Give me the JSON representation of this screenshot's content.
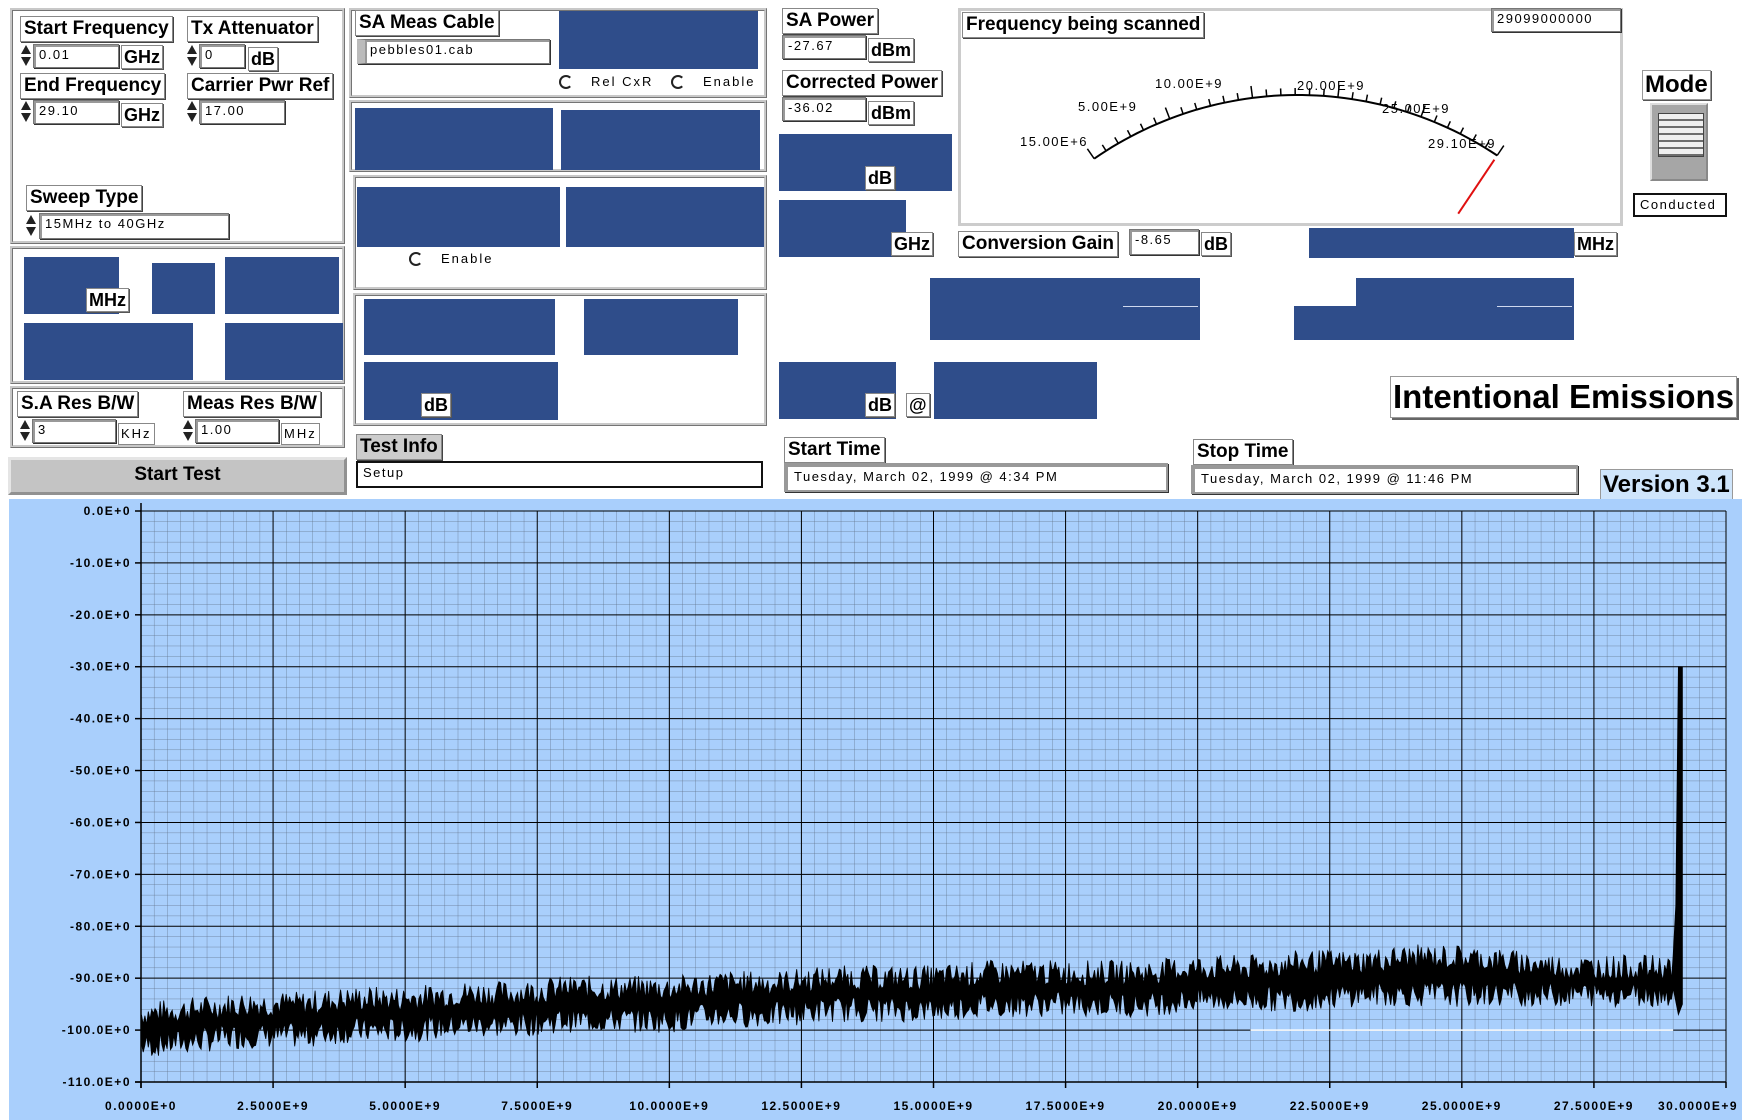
{
  "settings": {
    "start_frequency": {
      "label": "Start Frequency",
      "value": "0.01",
      "unit": "GHz"
    },
    "tx_attenuator": {
      "label": "Tx Attenuator",
      "value": "0",
      "unit": "dB"
    },
    "end_frequency": {
      "label": "End Frequency",
      "value": "29.10",
      "unit": "GHz"
    },
    "carrier_pwr_ref": {
      "label": "Carrier Pwr Ref",
      "value": "17.00"
    },
    "sweep_type": {
      "label": "Sweep Type",
      "value": "15MHz to 40GHz"
    },
    "mhz_unit": "MHz",
    "sa_res_bw": {
      "label": "S.A Res B/W",
      "value": "3",
      "unit": "KHz"
    },
    "meas_res_bw": {
      "label": "Meas Res B/W",
      "value": "1.00",
      "unit": "MHz"
    }
  },
  "cable": {
    "label": "SA Meas Cable",
    "value": "pebbles01.cab",
    "rel_cxr": "Rel CxR",
    "enable": "Enable",
    "enable2": "Enable",
    "db_unit": "dB"
  },
  "power": {
    "sa_power_label": "SA Power",
    "sa_power_value": "-27.67",
    "sa_power_unit": "dBm",
    "corrected_label": "Corrected Power",
    "corrected_value": "-36.02",
    "corrected_unit": "dBm",
    "db_unit": "dB",
    "ghz_unit": "GHz",
    "db_unit2": "dB",
    "at_sign": "@"
  },
  "scan": {
    "title": "Frequency being scanned",
    "current_value": "29099000000",
    "dial_labels": [
      "15.00E+6",
      "5.00E+9",
      "10.00E+9",
      "20.00E+9",
      "25.00E+9",
      "29.10E+9"
    ],
    "dial_fraction": 1.0
  },
  "conversion": {
    "label": "Conversion Gain",
    "value": "-8.65",
    "unit": "dB",
    "mhz_unit": "MHz"
  },
  "mode": {
    "title": "Mode",
    "value": "Conducted"
  },
  "heading": "Intentional Emissions",
  "version": "Version 3.1",
  "start_test_label": "Start Test",
  "test_info": {
    "label": "Test Info",
    "value": "Setup"
  },
  "start_time": {
    "label": "Start Time",
    "value": "Tuesday, March 02, 1999 @ 4:34 PM"
  },
  "stop_time": {
    "label": "Stop Time",
    "value": "Tuesday, March 02, 1999 @ 11:46 PM"
  },
  "colors": {
    "plot_bg": "#a9cffc",
    "panel_blue": "#2f4d8a",
    "needle": "#e01010",
    "trace": "#000000"
  },
  "chart_data": {
    "type": "line",
    "title": "",
    "xlabel": "",
    "ylabel": "",
    "xlim": [
      0,
      30000000000
    ],
    "ylim": [
      -110,
      0
    ],
    "grid": true,
    "x_tick_labels": [
      "0.0000E+0",
      "2.5000E+9",
      "5.0000E+9",
      "7.5000E+9",
      "10.0000E+9",
      "12.5000E+9",
      "15.0000E+9",
      "17.5000E+9",
      "20.0000E+9",
      "22.5000E+9",
      "25.0000E+9",
      "27.5000E+9",
      "30.0000E+9"
    ],
    "y_tick_labels": [
      "0.0E+0",
      "-10.0E+0",
      "-20.0E+0",
      "-30.0E+0",
      "-40.0E+0",
      "-50.0E+0",
      "-60.0E+0",
      "-70.0E+0",
      "-80.0E+0",
      "-90.0E+0",
      "-100.0E+0",
      "-110.0E+0"
    ],
    "series": [
      {
        "x": [
          10000000,
          1000000000,
          2000000000,
          3000000000,
          4000000000,
          5000000000,
          6000000000,
          7000000000,
          8000000000,
          9000000000,
          10000000000,
          11000000000,
          12000000000,
          13000000000,
          14000000000,
          15000000000,
          16000000000,
          17000000000,
          18000000000,
          19000000000,
          20000000000,
          21000000000,
          22000000000,
          23000000000,
          24000000000,
          25000000000,
          26000000000,
          27000000000,
          28000000000,
          28800000000,
          29000000000,
          29050000000,
          29099000000
        ],
        "y_min": [
          -103,
          -102,
          -101,
          -101,
          -100,
          -100,
          -99,
          -99,
          -98,
          -98,
          -98,
          -97,
          -97,
          -96,
          -96,
          -96,
          -95,
          -95,
          -95,
          -95,
          -94,
          -94,
          -94,
          -93,
          -93,
          -93,
          -93,
          -93,
          -93,
          -93,
          -93,
          -90,
          -30
        ],
        "y_max": [
          -97,
          -96,
          -95,
          -95,
          -94,
          -94,
          -93,
          -93,
          -92,
          -92,
          -92,
          -91,
          -91,
          -90,
          -90,
          -90,
          -89,
          -89,
          -89,
          -89,
          -88,
          -88,
          -87,
          -87,
          -86,
          -86,
          -87,
          -88,
          -88,
          -88,
          -88,
          -76,
          -30
        ]
      }
    ]
  }
}
